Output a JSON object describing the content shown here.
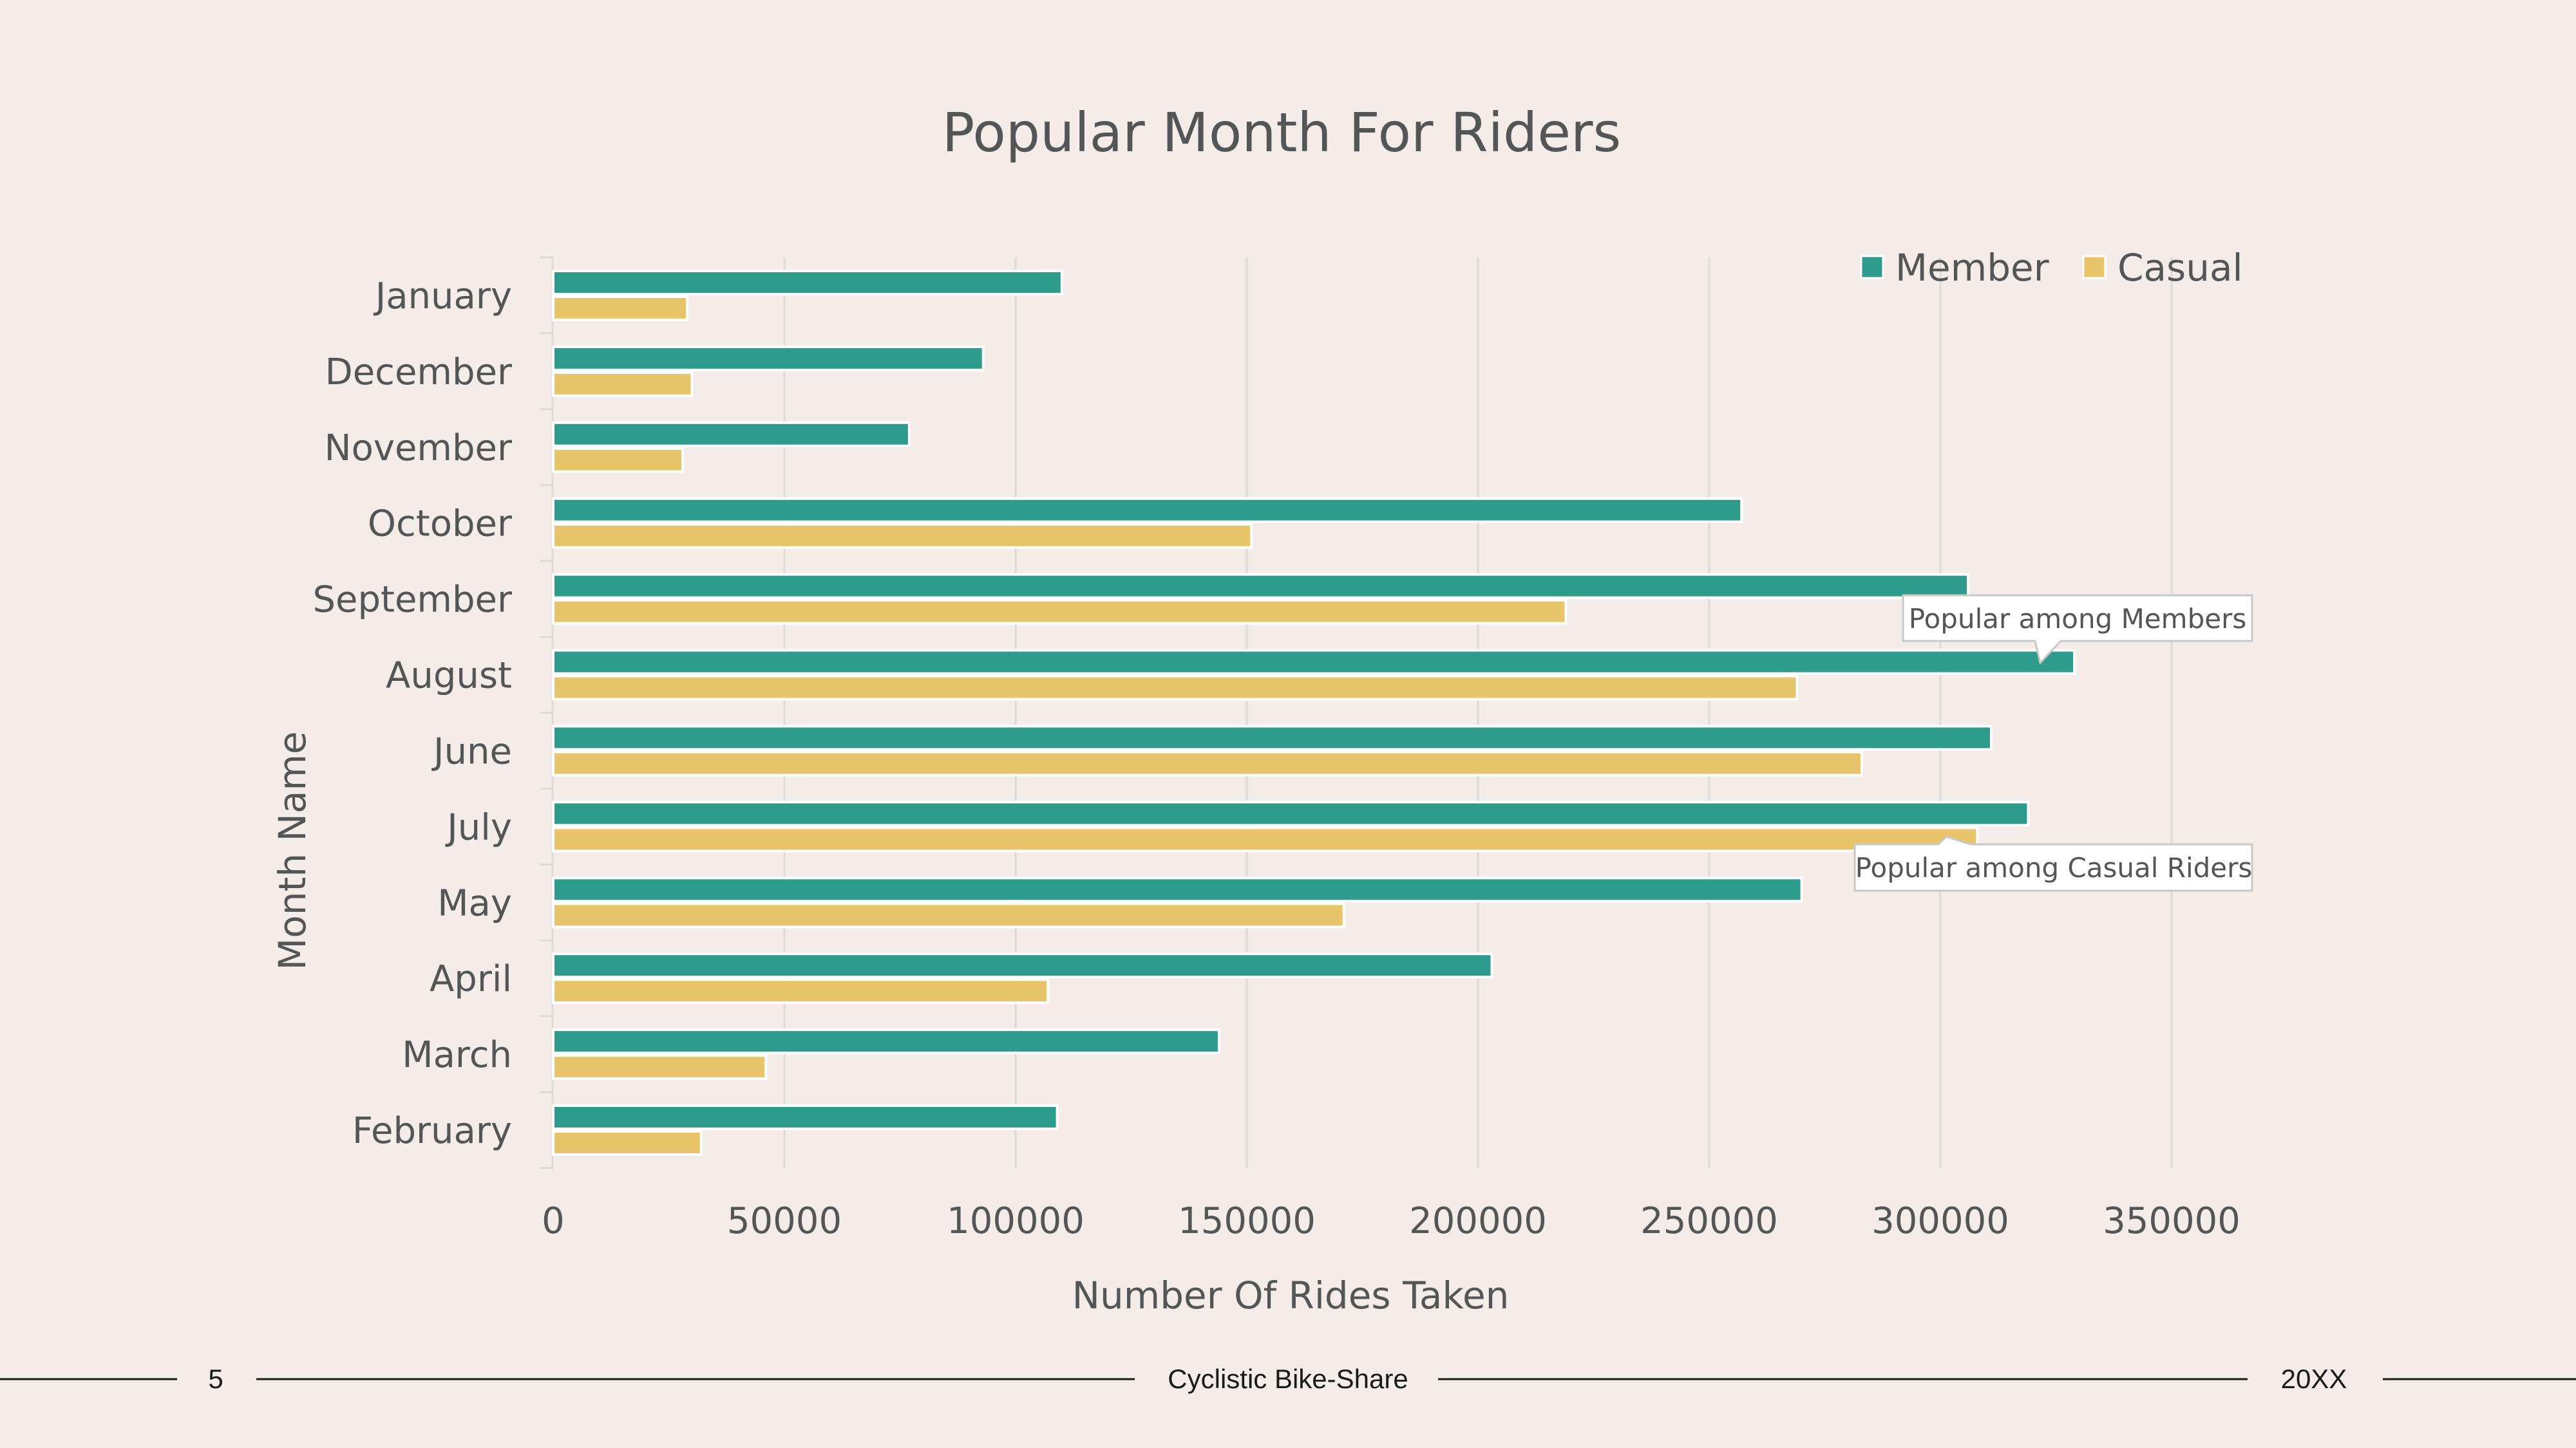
{
  "footer": {
    "page_number": "5",
    "center_text": "Cyclistic Bike-Share",
    "year": "20XX"
  },
  "colors": {
    "background": "#f4ece8",
    "member": "#2e9c8c",
    "casual": "#e8c46a",
    "grid": "#dddad6",
    "text": "#555555"
  },
  "chart_data": {
    "type": "bar",
    "orientation": "horizontal",
    "title": "Popular Month For Riders",
    "xlabel": "Number Of Rides Taken",
    "ylabel": "Month Name",
    "xlim": [
      0,
      350000
    ],
    "xticks": [
      0,
      50000,
      100000,
      150000,
      200000,
      250000,
      300000,
      350000
    ],
    "tick_labels": [
      "0",
      "50000",
      "100000",
      "150000",
      "200000",
      "250000",
      "300000",
      "350000"
    ],
    "categories": [
      "January",
      "December",
      "November",
      "October",
      "September",
      "August",
      "June",
      "July",
      "May",
      "April",
      "March",
      "February"
    ],
    "series": [
      {
        "name": "Member",
        "color": "#2e9c8c",
        "values": [
          110000,
          93000,
          77000,
          257000,
          306000,
          329000,
          311000,
          319000,
          270000,
          203000,
          144000,
          109000
        ]
      },
      {
        "name": "Casual",
        "color": "#e8c46a",
        "values": [
          29000,
          30000,
          28000,
          151000,
          219000,
          269000,
          283000,
          308000,
          171000,
          107000,
          46000,
          32000
        ]
      }
    ],
    "legend_position": "top-right",
    "grid": "vertical",
    "annotations": [
      {
        "text": "Popular among Members",
        "category": "August",
        "series": "Member"
      },
      {
        "text": "Popular among Casual Riders",
        "category": "July",
        "series": "Casual"
      }
    ]
  }
}
